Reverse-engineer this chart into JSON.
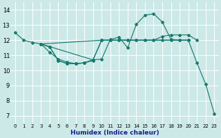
{
  "xlabel": "Humidex (Indice chaleur)",
  "xlim": [
    -0.5,
    23.5
  ],
  "ylim": [
    6.5,
    14.5
  ],
  "xticks": [
    0,
    1,
    2,
    3,
    4,
    5,
    6,
    7,
    8,
    9,
    10,
    11,
    12,
    13,
    14,
    15,
    16,
    17,
    18,
    19,
    20,
    21,
    22,
    23
  ],
  "yticks": [
    7,
    8,
    9,
    10,
    11,
    12,
    13,
    14
  ],
  "background_color": "#cce9e8",
  "grid_color": "#ffffff",
  "line_color": "#1a7a6e",
  "lines": [
    {
      "x": [
        0,
        1,
        2,
        3,
        4,
        5,
        6,
        7,
        8,
        9,
        10,
        11,
        12,
        13,
        14,
        15,
        16,
        17,
        18,
        19,
        20,
        21,
        22,
        23
      ],
      "y": [
        12.5,
        12.0,
        11.85,
        11.75,
        11.55,
        10.65,
        10.45,
        10.45,
        10.5,
        10.7,
        10.75,
        12.05,
        12.2,
        11.5,
        13.05,
        13.65,
        13.75,
        13.2,
        12.05,
        12.0,
        12.0,
        10.5,
        9.1,
        7.15
      ]
    },
    {
      "x": [
        3,
        10,
        20
      ],
      "y": [
        11.75,
        12.0,
        12.0
      ]
    },
    {
      "x": [
        3,
        9,
        10,
        11,
        12,
        13,
        14,
        15,
        16,
        17,
        18,
        19,
        20,
        21
      ],
      "y": [
        11.75,
        10.7,
        12.0,
        12.0,
        12.0,
        12.0,
        12.0,
        12.0,
        12.0,
        12.25,
        12.35,
        12.35,
        12.35,
        12.0
      ]
    },
    {
      "x": [
        3,
        4,
        5,
        6,
        7,
        8,
        9,
        10,
        11,
        12,
        13,
        14,
        15,
        16,
        17,
        18,
        19,
        20
      ],
      "y": [
        11.75,
        11.55,
        10.65,
        10.45,
        10.45,
        10.5,
        10.7,
        12.0,
        12.0,
        12.0,
        12.0,
        12.0,
        12.0,
        12.0,
        12.0,
        12.0,
        12.0,
        12.0
      ]
    },
    {
      "x": [
        3,
        4,
        5,
        6,
        7,
        8,
        9
      ],
      "y": [
        11.75,
        11.2,
        10.75,
        10.55,
        10.45,
        10.5,
        10.65
      ]
    }
  ]
}
